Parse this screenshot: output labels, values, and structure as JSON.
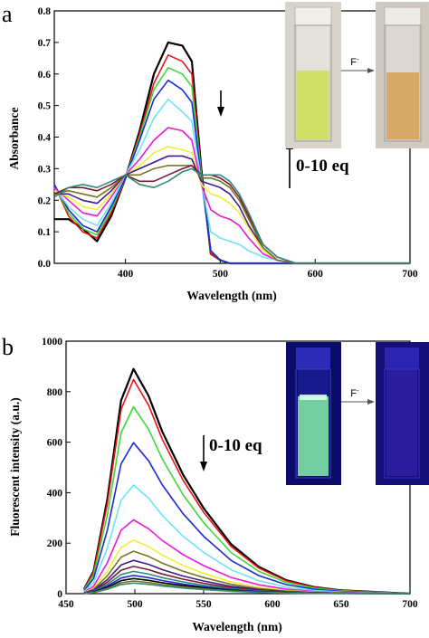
{
  "panels": {
    "a": {
      "label": "a",
      "annotation": "0-10 eq",
      "photo_arrow_label": "F",
      "photo_arrow_sup": "-",
      "colors": {
        "before": "#cfe069",
        "after": "#d6a86a"
      }
    },
    "b": {
      "label": "b",
      "annotation": "0-10 eq",
      "photo_arrow_label": "F",
      "photo_arrow_sup": "-",
      "colors": {
        "before": "#7fe0a6",
        "after": "#2a1e9c"
      }
    }
  },
  "chart_data": [
    {
      "type": "line",
      "panel": "a",
      "title": "",
      "xlabel": "Wavelength (nm)",
      "ylabel": "Absorbance",
      "xlim": [
        325,
        700
      ],
      "ylim": [
        0,
        0.8
      ],
      "xticks": [
        400,
        500,
        600,
        700
      ],
      "yticks": [
        0.0,
        0.1,
        0.2,
        0.3,
        0.4,
        0.5,
        0.6,
        0.7,
        0.8
      ],
      "ytick_labels": [
        "0.0",
        "0.1",
        "0.2",
        "0.3",
        "0.4",
        "0.5",
        "0.6",
        "0.7",
        "0.8"
      ],
      "grid": false,
      "x": [
        325,
        340,
        355,
        370,
        385,
        400,
        415,
        430,
        445,
        460,
        470,
        480,
        490,
        500,
        510,
        520,
        530,
        545,
        560,
        580,
        600,
        650,
        700
      ],
      "series": [
        {
          "color": "#000000",
          "values": [
            0.14,
            0.14,
            0.11,
            0.07,
            0.15,
            0.27,
            0.42,
            0.6,
            0.7,
            0.69,
            0.64,
            0.3,
            0.03,
            0.01,
            0.0,
            0.0,
            0.0,
            0.0,
            0.0,
            0.0,
            0.0,
            0.0,
            0.0
          ]
        },
        {
          "color": "#e8141a",
          "values": [
            0.25,
            0.15,
            0.1,
            0.08,
            0.16,
            0.27,
            0.41,
            0.57,
            0.66,
            0.64,
            0.6,
            0.29,
            0.03,
            0.01,
            0.0,
            0.0,
            0.0,
            0.0,
            0.0,
            0.0,
            0.0,
            0.0,
            0.0
          ]
        },
        {
          "color": "#3fd63a",
          "values": [
            0.25,
            0.16,
            0.11,
            0.09,
            0.17,
            0.27,
            0.4,
            0.55,
            0.62,
            0.6,
            0.56,
            0.28,
            0.04,
            0.01,
            0.0,
            0.0,
            0.0,
            0.0,
            0.0,
            0.0,
            0.0,
            0.0,
            0.0
          ]
        },
        {
          "color": "#1a2bd8",
          "values": [
            0.25,
            0.17,
            0.12,
            0.1,
            0.18,
            0.27,
            0.39,
            0.52,
            0.58,
            0.55,
            0.51,
            0.27,
            0.04,
            0.01,
            0.0,
            0.0,
            0.0,
            0.0,
            0.0,
            0.0,
            0.0,
            0.0,
            0.0
          ]
        },
        {
          "color": "#6fe3f0",
          "values": [
            0.24,
            0.18,
            0.14,
            0.12,
            0.19,
            0.28,
            0.36,
            0.46,
            0.52,
            0.48,
            0.45,
            0.26,
            0.1,
            0.08,
            0.07,
            0.06,
            0.04,
            0.02,
            0.01,
            0.0,
            0.0,
            0.0,
            0.0
          ]
        },
        {
          "color": "#e81ad8",
          "values": [
            0.24,
            0.2,
            0.16,
            0.15,
            0.21,
            0.28,
            0.33,
            0.39,
            0.43,
            0.42,
            0.39,
            0.25,
            0.17,
            0.15,
            0.14,
            0.12,
            0.08,
            0.03,
            0.01,
            0.0,
            0.0,
            0.0,
            0.0
          ]
        },
        {
          "color": "#f2ee38",
          "values": [
            0.23,
            0.21,
            0.18,
            0.17,
            0.22,
            0.28,
            0.31,
            0.35,
            0.37,
            0.36,
            0.35,
            0.25,
            0.22,
            0.21,
            0.19,
            0.16,
            0.11,
            0.04,
            0.01,
            0.0,
            0.0,
            0.0,
            0.0
          ]
        },
        {
          "color": "#3a1d8f",
          "values": [
            0.22,
            0.22,
            0.2,
            0.19,
            0.23,
            0.28,
            0.3,
            0.32,
            0.34,
            0.34,
            0.33,
            0.26,
            0.25,
            0.24,
            0.22,
            0.18,
            0.12,
            0.05,
            0.01,
            0.0,
            0.0,
            0.0,
            0.0
          ]
        },
        {
          "color": "#7a7320",
          "values": [
            0.22,
            0.23,
            0.22,
            0.21,
            0.24,
            0.28,
            0.28,
            0.3,
            0.31,
            0.31,
            0.31,
            0.27,
            0.27,
            0.26,
            0.24,
            0.2,
            0.14,
            0.05,
            0.01,
            0.0,
            0.0,
            0.0,
            0.0
          ]
        },
        {
          "color": "#7a1a2f",
          "values": [
            0.22,
            0.24,
            0.24,
            0.23,
            0.25,
            0.28,
            0.26,
            0.26,
            0.28,
            0.3,
            0.31,
            0.28,
            0.28,
            0.27,
            0.25,
            0.21,
            0.15,
            0.06,
            0.02,
            0.0,
            0.0,
            0.0,
            0.0
          ]
        },
        {
          "color": "#2f8a7a",
          "values": [
            0.21,
            0.24,
            0.25,
            0.24,
            0.26,
            0.28,
            0.25,
            0.24,
            0.26,
            0.29,
            0.3,
            0.28,
            0.28,
            0.28,
            0.26,
            0.22,
            0.16,
            0.06,
            0.02,
            0.0,
            0.0,
            0.0,
            0.0
          ]
        }
      ]
    },
    {
      "type": "line",
      "panel": "b",
      "title": "",
      "xlabel": "Wavelength (nm)",
      "ylabel": "Fluorescent intensity (a.u.)",
      "xlim": [
        450,
        700
      ],
      "ylim": [
        0,
        1000
      ],
      "xticks": [
        450,
        500,
        550,
        600,
        650,
        700
      ],
      "yticks": [
        0,
        200,
        400,
        600,
        800,
        1000
      ],
      "grid": false,
      "peak_x": 499,
      "peaks": [
        890,
        848,
        740,
        598,
        430,
        292,
        212,
        168,
        132,
        108,
        88,
        72,
        60,
        50,
        42
      ],
      "colors": [
        "#000000",
        "#e8141a",
        "#3fd63a",
        "#1a2bd8",
        "#6fe3f0",
        "#e81ad8",
        "#f2ee38",
        "#7a7320",
        "#3a1d8f",
        "#7a1a2f",
        "#2f8a7a",
        "#1a2bd8",
        "#000000",
        "#7a7320",
        "#2f8a7a"
      ]
    }
  ]
}
